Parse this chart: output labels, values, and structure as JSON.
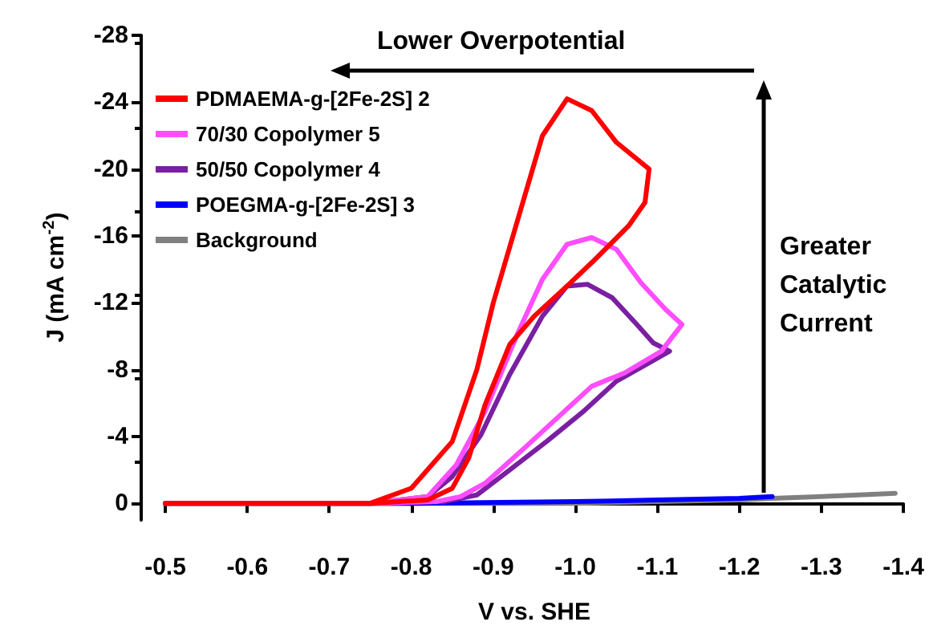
{
  "chart_data": {
    "type": "line",
    "xlabel": "V vs. SHE",
    "ylabel": "J (mA cm$^{-2}$)",
    "xlim": [
      -0.5,
      -1.4
    ],
    "xticks": [
      -0.5,
      -0.6,
      -0.7,
      -0.8,
      -0.9,
      {
        "value": -1.0,
        "label": "-1.0"
      },
      -1.1,
      -1.2,
      -1.3,
      -1.4
    ],
    "ylim": [
      1,
      -28
    ],
    "yticks": [
      0,
      -4,
      -8,
      -12,
      -16,
      -20,
      -24,
      -28
    ],
    "grid": false,
    "legend": "top left",
    "marker": "none",
    "line_style": "solid",
    "annotations": [
      "Lower Overpotential",
      "Greater\nCatalytic\nCurrent"
    ],
    "series": [
      {
        "name": "PDMAEMA-g-[2Fe-2S] 2",
        "color": "#ff0000",
        "x": [
          -0.5,
          -0.7,
          -0.75,
          -0.8,
          -0.85,
          -0.88,
          -0.9,
          -0.93,
          -0.96,
          -0.99,
          -1.02,
          -1.05,
          -1.09,
          -1.085,
          -1.065,
          -1.02,
          -0.99,
          -0.95,
          -0.92,
          -0.89,
          -0.87,
          -0.85,
          -0.82,
          -0.75
        ],
        "values": [
          0,
          0,
          0,
          -0.9,
          -3.7,
          -8,
          -12,
          -17,
          -22,
          -24.2,
          -23.5,
          -21.6,
          -20,
          -18,
          -16.6,
          -14.4,
          -13,
          -11.2,
          -9.5,
          -5.9,
          -2.7,
          -0.9,
          -0.2,
          0
        ]
      },
      {
        "name": "70/30 Copolymer 5",
        "color": "#ff4dff",
        "x": [
          -0.5,
          -0.75,
          -0.82,
          -0.855,
          -0.89,
          -0.93,
          -0.96,
          -0.99,
          -1.02,
          -1.05,
          -1.08,
          -1.11,
          -1.13,
          -1.105,
          -1.06,
          -1.02,
          -0.98,
          -0.94,
          -0.89,
          -0.86,
          -0.83,
          -0.75
        ],
        "values": [
          0,
          0,
          -0.4,
          -2.3,
          -5.5,
          -10.2,
          -13.4,
          -15.5,
          -15.9,
          -15.2,
          -13.2,
          -11.6,
          -10.7,
          -9.1,
          -7.8,
          -7,
          -5.2,
          -3.4,
          -1.2,
          -0.4,
          -0.1,
          0
        ]
      },
      {
        "name": "50/50 Copolymer 4",
        "color": "#7a1fa2",
        "x": [
          -0.5,
          -0.75,
          -0.82,
          -0.85,
          -0.885,
          -0.92,
          -0.96,
          -0.99,
          -1.015,
          -1.045,
          -1.075,
          -1.095,
          -1.115,
          -1.09,
          -1.05,
          -1.01,
          -0.965,
          -0.92,
          -0.88,
          -0.84,
          -0.75
        ],
        "values": [
          0,
          0,
          -0.4,
          -1.6,
          -4.1,
          -7.7,
          -11.2,
          -13,
          -13.1,
          -12.3,
          -10.7,
          -9.6,
          -9.1,
          -8.4,
          -7.3,
          -5.5,
          -3.7,
          -2,
          -0.5,
          -0.1,
          0
        ]
      },
      {
        "name": "POEGMA-g-[2Fe-2S] 3",
        "color": "#0000ff",
        "x": [
          -0.5,
          -0.8,
          -1.0,
          -1.1,
          -1.2,
          -1.24
        ],
        "values": [
          0,
          0,
          -0.1,
          -0.2,
          -0.3,
          -0.4
        ]
      },
      {
        "name": "Background",
        "color": "#808080",
        "x": [
          -0.5,
          -0.8,
          -1.0,
          -1.1,
          -1.2,
          -1.24,
          -1.3,
          -1.39
        ],
        "values": [
          0,
          0,
          0,
          -0.1,
          -0.2,
          -0.3,
          -0.4,
          -0.6
        ]
      }
    ]
  }
}
